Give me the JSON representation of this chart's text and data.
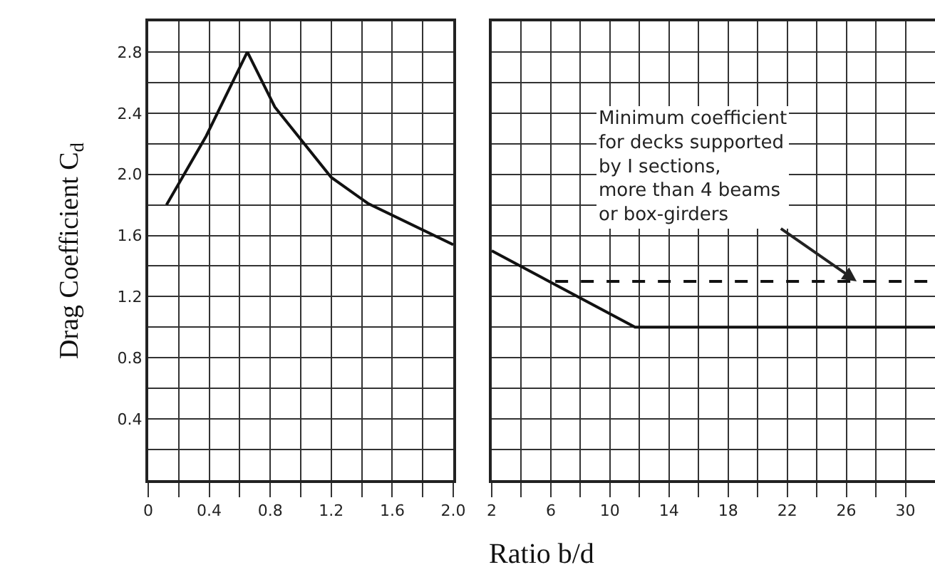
{
  "chart_data": [
    {
      "type": "line",
      "ylabel": "Drag Coefficient C$_{d}$",
      "xlabel": "Ratio b/d",
      "x": [
        0.12,
        0.38,
        0.65,
        0.83,
        1.2,
        1.44,
        2.0
      ],
      "series": [
        {
          "color": "#111111",
          "values": [
            1.8,
            2.25,
            2.8,
            2.44,
            1.98,
            1.81,
            1.54
          ],
          "line_style": "solid"
        }
      ],
      "xlim": [
        0,
        2.0
      ],
      "ylim": [
        0,
        3.0
      ],
      "grid": true,
      "marker": "none",
      "xticks": [
        0,
        {
          "value": 0.2,
          "label": null
        },
        0.4,
        {
          "value": 0.6,
          "label": null
        },
        0.8,
        {
          "value": 1.0,
          "label": null
        },
        1.2,
        {
          "value": 1.4,
          "label": null
        },
        1.6,
        {
          "value": 1.8,
          "label": null
        },
        {
          "value": 2.0,
          "label": "2.0"
        }
      ],
      "yticks": [
        {
          "value": 0.2,
          "label": null
        },
        0.4,
        {
          "value": 0.6,
          "label": null
        },
        0.8,
        {
          "value": 1.0,
          "label": null
        },
        1.2,
        {
          "value": 1.4,
          "label": null
        },
        1.6,
        {
          "value": 1.8,
          "label": null
        },
        {
          "value": 2.0,
          "label": "2.0"
        },
        {
          "value": 2.2,
          "label": null
        },
        2.4,
        {
          "value": 2.6,
          "label": null
        },
        2.8
      ]
    },
    {
      "type": "line",
      "series": [
        {
          "color": "#111111",
          "x": [
            2,
            11.7,
            32
          ],
          "values": [
            1.5,
            1.0,
            1.0
          ],
          "line_style": "solid"
        },
        {
          "color": "#111111",
          "x": [
            6.3,
            32
          ],
          "values": [
            1.3,
            1.3
          ],
          "line_style": "dashed"
        }
      ],
      "xlim": [
        2,
        32
      ],
      "ylim": [
        0,
        3.0
      ],
      "grid": true,
      "marker": "none",
      "tick_labels": "x",
      "annotations": [
        {
          "text": "Minimum coefficient\nfor decks supported\nby I sections,\nmore than 4 beams\nor box-girders",
          "x": 26.7,
          "y": 1.3
        }
      ],
      "xticks": [
        2,
        {
          "value": 4,
          "label": null
        },
        6,
        {
          "value": 8,
          "label": null
        },
        10,
        {
          "value": 12,
          "label": null
        },
        14,
        {
          "value": 16,
          "label": null
        },
        18,
        {
          "value": 20,
          "label": null
        },
        22,
        {
          "value": 24,
          "label": null
        },
        26,
        {
          "value": 28,
          "label": null
        },
        30
      ],
      "yticks": [
        0.2,
        0.4,
        0.6,
        0.8,
        1.0,
        1.2,
        1.4,
        1.6,
        1.8,
        2.0,
        2.2,
        2.4,
        2.6,
        2.8
      ]
    }
  ]
}
